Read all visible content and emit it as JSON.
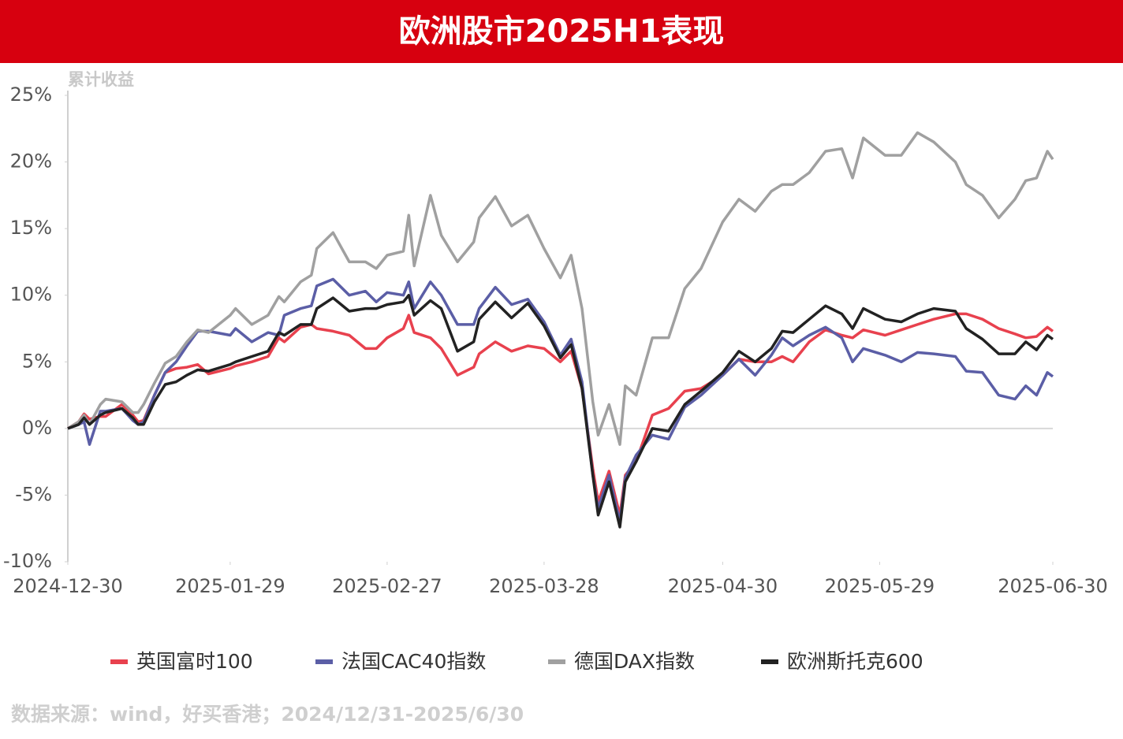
{
  "chart_data": {
    "type": "line",
    "title": "欧洲股市2025H1表现",
    "y_axis_label": "累计收益",
    "source": "数据来源：wind，好买香港；2024/12/31-2025/6/30",
    "x": [
      "2024-12-30",
      "2025-01-01",
      "2025-01-02",
      "2025-01-03",
      "2025-01-05",
      "2025-01-06",
      "2025-01-09",
      "2025-01-11",
      "2025-01-12",
      "2025-01-13",
      "2025-01-15",
      "2025-01-17",
      "2025-01-19",
      "2025-01-21",
      "2025-01-23",
      "2025-01-25",
      "2025-01-29",
      "2025-01-30",
      "2025-02-02",
      "2025-02-05",
      "2025-02-07",
      "2025-02-08",
      "2025-02-11",
      "2025-02-13",
      "2025-02-14",
      "2025-02-17",
      "2025-02-20",
      "2025-02-23",
      "2025-02-25",
      "2025-02-27",
      "2025-03-02",
      "2025-03-03",
      "2025-03-04",
      "2025-03-07",
      "2025-03-09",
      "2025-03-12",
      "2025-03-15",
      "2025-03-16",
      "2025-03-19",
      "2025-03-22",
      "2025-03-25",
      "2025-03-28",
      "2025-03-31",
      "2025-04-02",
      "2025-04-04",
      "2025-04-06",
      "2025-04-07",
      "2025-04-09",
      "2025-04-11",
      "2025-04-12",
      "2025-04-14",
      "2025-04-17",
      "2025-04-20",
      "2025-04-23",
      "2025-04-26",
      "2025-04-30",
      "2025-05-03",
      "2025-05-06",
      "2025-05-09",
      "2025-05-11",
      "2025-05-13",
      "2025-05-16",
      "2025-05-19",
      "2025-05-22",
      "2025-05-24",
      "2025-05-26",
      "2025-05-30",
      "2025-06-02",
      "2025-06-05",
      "2025-06-08",
      "2025-06-12",
      "2025-06-14",
      "2025-06-17",
      "2025-06-20",
      "2025-06-23",
      "2025-06-25",
      "2025-06-27",
      "2025-06-29",
      "2025-06-30"
    ],
    "series": [
      {
        "name": "英国富时100",
        "color": "#e8414e",
        "values": [
          0,
          0.5,
          1.1,
          0.7,
          0.9,
          0.9,
          1.8,
          1.0,
          0.5,
          0.6,
          2.5,
          4.2,
          4.5,
          4.6,
          4.8,
          4.1,
          4.5,
          4.7,
          5.0,
          5.4,
          6.8,
          6.5,
          7.6,
          7.8,
          7.5,
          7.3,
          7.0,
          6.0,
          6.0,
          6.8,
          7.5,
          8.5,
          7.2,
          6.8,
          6.0,
          4.0,
          4.6,
          5.6,
          6.5,
          5.8,
          6.2,
          6.0,
          5.0,
          5.8,
          3.0,
          -3.0,
          -5.5,
          -3.2,
          -6.5,
          -3.5,
          -2.5,
          1.0,
          1.5,
          2.8,
          3.0,
          4.0,
          5.2,
          5.0,
          5.0,
          5.4,
          5.0,
          6.5,
          7.4,
          7.0,
          6.8,
          7.4,
          7.0,
          7.4,
          7.8,
          8.2,
          8.6,
          8.6,
          8.2,
          7.5,
          7.1,
          6.8,
          6.9,
          7.6,
          7.3
        ]
      },
      {
        "name": "法国CAC40指数",
        "color": "#5b5ea6",
        "values": [
          0,
          0.3,
          0.5,
          -1.2,
          1.3,
          1.3,
          1.5,
          0.6,
          0.3,
          0.5,
          2.5,
          4.2,
          5.0,
          6.2,
          7.3,
          7.3,
          7.0,
          7.5,
          6.5,
          7.2,
          7.0,
          8.5,
          9.0,
          9.2,
          10.7,
          11.2,
          10.0,
          10.3,
          9.5,
          10.2,
          10.0,
          11.0,
          9.0,
          11.0,
          10.0,
          7.8,
          7.8,
          9.0,
          10.6,
          9.3,
          9.7,
          8.0,
          5.5,
          6.7,
          3.5,
          -3.5,
          -6.0,
          -3.5,
          -7.0,
          -3.7,
          -2.0,
          -0.5,
          -0.8,
          1.6,
          2.5,
          4.0,
          5.2,
          4.0,
          5.5,
          6.8,
          6.2,
          7.0,
          7.6,
          6.8,
          5.0,
          6.0,
          5.5,
          5.0,
          5.7,
          5.6,
          5.4,
          4.3,
          4.2,
          2.5,
          2.2,
          3.2,
          2.5,
          4.2,
          3.9
        ]
      },
      {
        "name": "德国DAX指数",
        "color": "#a0a0a0",
        "values": [
          0,
          0.5,
          1.0,
          0.3,
          1.8,
          2.2,
          2.0,
          1.2,
          1.2,
          1.8,
          3.4,
          4.9,
          5.4,
          6.5,
          7.4,
          7.2,
          8.5,
          9.0,
          7.8,
          8.5,
          9.9,
          9.5,
          11.0,
          11.5,
          13.5,
          14.7,
          12.5,
          12.5,
          12.0,
          13.0,
          13.3,
          16.0,
          12.2,
          17.5,
          14.5,
          12.5,
          14.0,
          15.8,
          17.4,
          15.2,
          16.0,
          13.5,
          11.3,
          13.0,
          9.0,
          2.0,
          -0.5,
          1.8,
          -1.2,
          3.2,
          2.5,
          6.8,
          6.8,
          10.5,
          12.0,
          15.5,
          17.2,
          16.3,
          17.8,
          18.3,
          18.3,
          19.2,
          20.8,
          21.0,
          18.8,
          21.8,
          20.5,
          20.5,
          22.2,
          21.5,
          20.0,
          18.3,
          17.5,
          15.8,
          17.2,
          18.6,
          18.8,
          20.8,
          20.2
        ]
      },
      {
        "name": "欧洲斯托克600",
        "color": "#222222",
        "values": [
          0,
          0.3,
          0.8,
          0.3,
          1.0,
          1.2,
          1.5,
          0.8,
          0.3,
          0.3,
          2.0,
          3.3,
          3.5,
          4.0,
          4.4,
          4.3,
          4.8,
          5.0,
          5.4,
          5.8,
          7.2,
          7.0,
          7.8,
          7.8,
          9.0,
          9.8,
          8.8,
          9.0,
          9.0,
          9.3,
          9.5,
          10.0,
          8.5,
          9.6,
          9.0,
          5.8,
          6.5,
          8.2,
          9.5,
          8.3,
          9.4,
          7.7,
          5.3,
          6.3,
          3.0,
          -3.5,
          -6.5,
          -4.0,
          -7.4,
          -4.0,
          -2.5,
          0.0,
          -0.2,
          1.8,
          2.8,
          4.2,
          5.8,
          5.0,
          6.0,
          7.3,
          7.2,
          8.2,
          9.2,
          8.6,
          7.5,
          9.0,
          8.2,
          8.0,
          8.6,
          9.0,
          8.8,
          7.5,
          6.7,
          5.6,
          5.6,
          6.5,
          5.9,
          7.0,
          6.7
        ]
      }
    ],
    "xlim": [
      "2024-12-30",
      "2025-06-30"
    ],
    "xticks": [
      "2024-12-30",
      "2025-01-29",
      "2025-02-27",
      "2025-03-28",
      "2025-04-30",
      "2025-05-29",
      "2025-06-30"
    ],
    "ylim": [
      -10,
      25
    ],
    "yticks": [
      {
        "value": -10,
        "label": "-10%"
      },
      {
        "value": -5,
        "label": "-5%"
      },
      {
        "value": 0,
        "label": "0%"
      },
      {
        "value": 5,
        "label": "5%"
      },
      {
        "value": 10,
        "label": "10%"
      },
      {
        "value": 15,
        "label": "15%"
      },
      {
        "value": 20,
        "label": "20%"
      },
      {
        "value": 25,
        "label": "25%"
      }
    ],
    "grid": false,
    "legend": "bottom"
  }
}
